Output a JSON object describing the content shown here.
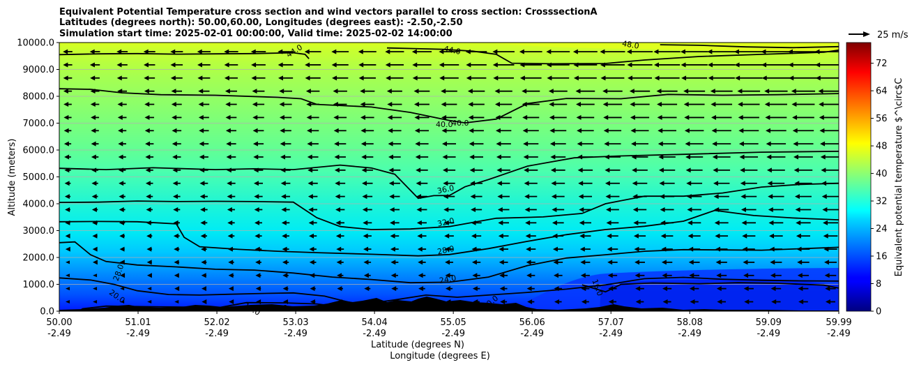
{
  "chart_data": {
    "type": "contour",
    "title_lines": [
      "Equivalent Potential Temperature cross section and wind vectors parallel to cross section: CrosssectionA",
      "Latitudes (degrees north): 50.00,60.00, Longitudes (degrees east): -2.50,-2.50",
      "Simulation start time: 2025-02-01 00:00:00, Valid time: 2025-02-02 14:00:00"
    ],
    "xlabel_lines": [
      "Latitude (degrees N)",
      "Longitude (degrees E)"
    ],
    "ylabel": "Altitude (meters)",
    "x_ticks": [
      {
        "lat": "50.00",
        "lon": "-2.49"
      },
      {
        "lat": "51.01",
        "lon": "-2.49"
      },
      {
        "lat": "52.02",
        "lon": "-2.49"
      },
      {
        "lat": "53.03",
        "lon": "-2.49"
      },
      {
        "lat": "54.04",
        "lon": "-2.49"
      },
      {
        "lat": "55.05",
        "lon": "-2.49"
      },
      {
        "lat": "56.06",
        "lon": "-2.49"
      },
      {
        "lat": "57.07",
        "lon": "-2.49"
      },
      {
        "lat": "58.08",
        "lon": "-2.49"
      },
      {
        "lat": "59.09",
        "lon": "-2.49"
      },
      {
        "lat": "59.99",
        "lon": "-2.49"
      }
    ],
    "xlim": [
      50.0,
      59.99
    ],
    "y_ticks": [
      "0.0",
      "1000.0",
      "2000.0",
      "3000.0",
      "4000.0",
      "5000.0",
      "6000.0",
      "7000.0",
      "8000.0",
      "9000.0",
      "10000.0"
    ],
    "ylim": [
      0,
      10000
    ],
    "grid": "horizontal",
    "colorbar": {
      "label": "Equivalent potential temperature $^\\circ$C",
      "ticks": [
        "0",
        "8",
        "16",
        "24",
        "32",
        "40",
        "48",
        "56",
        "64",
        "72"
      ],
      "range": [
        0,
        78
      ],
      "colormap": "jet"
    },
    "quiver_key": {
      "label": "25 m/s",
      "magnitude": 25
    },
    "contour_labels": [
      "44.0",
      "44.0",
      "48.0",
      "40.0",
      "40.0",
      "36.0",
      "32.0",
      "28.0",
      "24.0",
      "28.0",
      "20.0",
      "16.0",
      "16.0",
      "16.0",
      "20.0"
    ],
    "isolines": [
      {
        "level": 44,
        "points": [
          [
            50.0,
            9550
          ],
          [
            50.5,
            9580
          ],
          [
            51.0,
            9590
          ],
          [
            51.5,
            9570
          ],
          [
            52.0,
            9580
          ],
          [
            52.5,
            9590
          ],
          [
            53.0,
            9620
          ],
          [
            53.15,
            9560
          ],
          [
            53.2,
            9400
          ]
        ]
      },
      {
        "level": 44,
        "points": [
          [
            54.2,
            9800
          ],
          [
            54.5,
            9780
          ],
          [
            54.9,
            9750
          ],
          [
            55.3,
            9680
          ],
          [
            55.6,
            9560
          ],
          [
            55.8,
            9230
          ],
          [
            56.3,
            9210
          ],
          [
            57.0,
            9220
          ],
          [
            57.5,
            9350
          ],
          [
            58.2,
            9480
          ],
          [
            59.0,
            9560
          ],
          [
            59.8,
            9640
          ],
          [
            59.99,
            9720
          ]
        ]
      },
      {
        "level": 48,
        "points": [
          [
            57.7,
            9920
          ],
          [
            58.2,
            9900
          ],
          [
            58.8,
            9840
          ],
          [
            59.4,
            9810
          ],
          [
            59.99,
            9850
          ]
        ]
      },
      {
        "level": 40,
        "points": [
          [
            50.0,
            8280
          ],
          [
            50.4,
            8260
          ],
          [
            50.8,
            8130
          ],
          [
            51.3,
            8060
          ],
          [
            52.0,
            8040
          ],
          [
            52.8,
            7960
          ],
          [
            53.1,
            7910
          ],
          [
            53.3,
            7700
          ],
          [
            54.0,
            7600
          ],
          [
            54.5,
            7400
          ],
          [
            55.0,
            7100
          ],
          [
            55.2,
            7010
          ],
          [
            55.6,
            7150
          ],
          [
            56.0,
            7730
          ],
          [
            56.5,
            7920
          ],
          [
            57.2,
            7910
          ],
          [
            57.8,
            8070
          ],
          [
            58.5,
            8040
          ],
          [
            59.2,
            8060
          ],
          [
            59.99,
            8100
          ]
        ]
      },
      {
        "level": 36,
        "points": [
          [
            50.0,
            5320
          ],
          [
            50.6,
            5270
          ],
          [
            51.2,
            5340
          ],
          [
            52.0,
            5270
          ],
          [
            52.5,
            5300
          ],
          [
            53.0,
            5270
          ],
          [
            53.6,
            5440
          ],
          [
            54.0,
            5330
          ],
          [
            54.3,
            5100
          ],
          [
            54.6,
            4200
          ],
          [
            54.8,
            4300
          ],
          [
            55.0,
            4310
          ],
          [
            55.2,
            4630
          ],
          [
            55.5,
            4900
          ],
          [
            56.0,
            5400
          ],
          [
            56.6,
            5710
          ],
          [
            57.2,
            5780
          ],
          [
            58.0,
            5840
          ],
          [
            59.0,
            5920
          ],
          [
            59.99,
            5950
          ]
        ]
      },
      {
        "level": 32,
        "points": [
          [
            50.0,
            4050
          ],
          [
            50.5,
            4060
          ],
          [
            51.0,
            4100
          ],
          [
            51.5,
            4080
          ],
          [
            52.0,
            4090
          ],
          [
            52.5,
            4080
          ],
          [
            53.0,
            4060
          ],
          [
            53.3,
            3480
          ],
          [
            53.6,
            3150
          ],
          [
            54.0,
            3040
          ],
          [
            54.5,
            3060
          ],
          [
            55.0,
            3150
          ],
          [
            55.6,
            3460
          ],
          [
            56.2,
            3510
          ],
          [
            56.7,
            3640
          ],
          [
            57.0,
            4000
          ],
          [
            57.5,
            4280
          ],
          [
            58.0,
            4280
          ],
          [
            58.5,
            4400
          ],
          [
            59.0,
            4620
          ],
          [
            59.5,
            4720
          ],
          [
            59.99,
            4760
          ]
        ]
      },
      {
        "level": 28,
        "points": [
          [
            50.0,
            3330
          ],
          [
            50.5,
            3340
          ],
          [
            51.0,
            3330
          ],
          [
            51.5,
            3250
          ],
          [
            51.6,
            2750
          ],
          [
            51.8,
            2400
          ],
          [
            52.3,
            2300
          ],
          [
            52.8,
            2230
          ],
          [
            53.3,
            2180
          ],
          [
            54.0,
            2120
          ],
          [
            54.6,
            2060
          ],
          [
            55.0,
            2110
          ],
          [
            55.5,
            2330
          ],
          [
            56.0,
            2600
          ],
          [
            56.5,
            2850
          ],
          [
            57.0,
            3040
          ],
          [
            57.5,
            3160
          ],
          [
            58.0,
            3350
          ],
          [
            58.4,
            3750
          ],
          [
            58.9,
            3560
          ],
          [
            59.4,
            3470
          ],
          [
            59.99,
            3400
          ]
        ]
      },
      {
        "level": 24,
        "points": [
          [
            50.0,
            2550
          ],
          [
            50.2,
            2580
          ],
          [
            50.4,
            2100
          ],
          [
            50.6,
            1850
          ],
          [
            51.0,
            1720
          ],
          [
            51.5,
            1650
          ],
          [
            52.0,
            1560
          ],
          [
            52.5,
            1530
          ],
          [
            53.0,
            1420
          ],
          [
            53.5,
            1270
          ],
          [
            54.0,
            1180
          ],
          [
            54.5,
            1060
          ],
          [
            55.0,
            1080
          ],
          [
            55.5,
            1270
          ],
          [
            56.0,
            1700
          ],
          [
            56.5,
            1980
          ],
          [
            57.0,
            2100
          ],
          [
            57.5,
            2230
          ],
          [
            58.0,
            2290
          ],
          [
            58.5,
            2280
          ],
          [
            59.0,
            2270
          ],
          [
            59.99,
            2380
          ]
        ]
      },
      {
        "level": 20,
        "points": [
          [
            50.0,
            1240
          ],
          [
            50.4,
            1160
          ],
          [
            50.7,
            1000
          ],
          [
            51.0,
            760
          ],
          [
            51.4,
            620
          ],
          [
            51.8,
            600
          ],
          [
            52.2,
            630
          ],
          [
            52.6,
            660
          ],
          [
            53.0,
            680
          ],
          [
            53.4,
            560
          ],
          [
            53.7,
            340
          ],
          [
            53.9,
            260
          ],
          [
            54.3,
            420
          ],
          [
            54.7,
            600
          ],
          [
            55.1,
            520
          ],
          [
            55.5,
            600
          ],
          [
            56.0,
            700
          ],
          [
            56.5,
            820
          ],
          [
            57.0,
            980
          ],
          [
            57.5,
            1210
          ],
          [
            58.0,
            1260
          ],
          [
            58.5,
            1190
          ],
          [
            59.0,
            1150
          ],
          [
            59.5,
            1130
          ],
          [
            59.99,
            1120
          ]
        ]
      },
      {
        "level": 16,
        "points": [
          [
            50.25,
            0
          ],
          [
            50.3,
            90
          ],
          [
            50.6,
            190
          ],
          [
            51.1,
            170
          ],
          [
            51.6,
            150
          ],
          [
            52.0,
            110
          ],
          [
            52.4,
            320
          ],
          [
            52.9,
            310
          ],
          [
            53.3,
            270
          ],
          [
            53.6,
            160
          ],
          [
            54.0,
            200
          ],
          [
            54.3,
            160
          ],
          [
            54.7,
            240
          ],
          [
            55.2,
            120
          ],
          [
            55.6,
            70
          ]
        ]
      },
      {
        "level": 16,
        "points": [
          [
            56.7,
            980
          ],
          [
            57.0,
            720
          ],
          [
            57.2,
            1000
          ],
          [
            57.6,
            1050
          ],
          [
            58.2,
            1020
          ],
          [
            58.7,
            1060
          ],
          [
            59.2,
            1040
          ],
          [
            59.8,
            970
          ],
          [
            59.99,
            860
          ]
        ]
      }
    ]
  }
}
